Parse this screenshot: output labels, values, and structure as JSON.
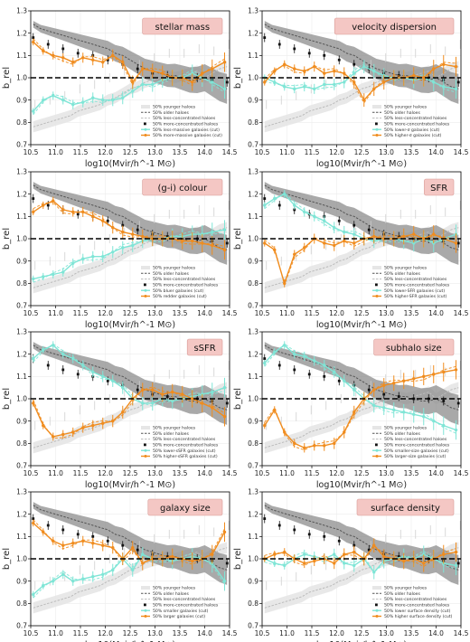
{
  "figure": {
    "shared": {
      "xlabel": "log10(Mvir/h^-1 M⊙)",
      "ylabel": "b_rel",
      "xlim": [
        10.5,
        14.5
      ],
      "ylim": [
        0.7,
        1.3
      ],
      "xticks": [
        "10.5",
        "11.0",
        "11.5",
        "12.0",
        "12.5",
        "13.0",
        "13.5",
        "14.0",
        "14.5"
      ],
      "yticks": [
        "0.7",
        "0.8",
        "0.9",
        "1.0",
        "1.1",
        "1.2",
        "1.3"
      ]
    },
    "colors": {
      "halo_dark": "#555555",
      "halo_light": "#bbbbbb",
      "concentrated": "#111111",
      "low_gal": "#7fe5d6",
      "high_gal": "#f08c1e",
      "band_dark": "#8c8c8c",
      "band_light": "#e6e6e6"
    }
  },
  "chart_data": [
    {
      "type": "line",
      "title": "stellar mass",
      "legend": [
        "50% younger haloes",
        "50% older haloes",
        "50% less-concentrated haloes",
        "50% more-concentrated haloes",
        "50% less-massive galaxies (cut)",
        "50% more-massive galaxies (cut)"
      ],
      "series": [
        {
          "name": "50% more-massive galaxies (cut)",
          "x": [
            10.55,
            10.75,
            10.95,
            11.15,
            11.35,
            11.55,
            11.75,
            11.95,
            12.15,
            12.35,
            12.55,
            12.75,
            12.95,
            13.15,
            13.35,
            13.55,
            13.75,
            13.95,
            14.15,
            14.4
          ],
          "values": [
            1.16,
            1.12,
            1.1,
            1.09,
            1.07,
            1.09,
            1.08,
            1.07,
            1.1,
            1.07,
            0.98,
            1.04,
            1.03,
            1.02,
            1.0,
            1.0,
            0.98,
            1.02,
            1.04,
            1.07
          ]
        },
        {
          "name": "50% less-massive galaxies (cut)",
          "x": [
            10.55,
            10.75,
            10.95,
            11.15,
            11.35,
            11.55,
            11.75,
            11.95,
            12.15,
            12.35,
            12.55,
            12.75,
            12.95,
            13.15,
            13.35,
            13.55,
            13.75,
            13.95,
            14.15,
            14.4
          ],
          "values": [
            0.85,
            0.9,
            0.92,
            0.9,
            0.88,
            0.89,
            0.91,
            0.9,
            0.9,
            0.91,
            0.94,
            0.97,
            0.97,
            0.99,
            1.0,
            1.0,
            1.02,
            1.0,
            0.98,
            0.95
          ]
        }
      ]
    },
    {
      "type": "line",
      "title": "velocity dispersion",
      "legend": [
        "50% younger haloes",
        "50% older haloes",
        "50% less-concentrated haloes",
        "50% more-concentrated haloes",
        "50% lower-σ galaxies (cut)",
        "50% higher-σ galaxies (cut)"
      ],
      "series": [
        {
          "name": "50% higher-σ galaxies (cut)",
          "x": [
            10.55,
            10.75,
            10.95,
            11.15,
            11.35,
            11.55,
            11.75,
            11.95,
            12.15,
            12.35,
            12.55,
            12.75,
            12.95,
            13.15,
            13.35,
            13.55,
            13.75,
            13.95,
            14.15,
            14.4
          ],
          "values": [
            0.98,
            1.03,
            1.06,
            1.04,
            1.03,
            1.05,
            1.02,
            1.03,
            1.02,
            0.98,
            0.9,
            0.95,
            0.98,
            1.0,
            1.0,
            1.01,
            1.0,
            1.04,
            1.06,
            1.05
          ]
        },
        {
          "name": "50% lower-σ galaxies (cut)",
          "x": [
            10.55,
            10.75,
            10.95,
            11.15,
            11.35,
            11.55,
            11.75,
            11.95,
            12.15,
            12.35,
            12.55,
            12.75,
            12.95,
            13.15,
            13.35,
            13.55,
            13.75,
            13.95,
            14.15,
            14.4
          ],
          "values": [
            1.0,
            0.98,
            0.96,
            0.95,
            0.96,
            0.95,
            0.97,
            0.97,
            0.98,
            1.02,
            1.05,
            1.03,
            1.01,
            1.0,
            1.0,
            0.99,
            1.0,
            0.98,
            0.96,
            0.95
          ]
        }
      ]
    },
    {
      "type": "line",
      "title": "(g-i) colour",
      "legend": [
        "50% younger haloes",
        "50% older haloes",
        "50% less-concentrated haloes",
        "50% more-concentrated haloes",
        "50% bluer galaxies (cut)",
        "50% redder galaxies (cut)"
      ],
      "series": [
        {
          "name": "50% redder galaxies (cut)",
          "x": [
            10.55,
            10.75,
            10.95,
            11.15,
            11.35,
            11.55,
            11.75,
            11.95,
            12.15,
            12.35,
            12.55,
            12.75,
            12.95,
            13.15,
            13.35,
            13.55,
            13.75,
            13.95,
            14.15,
            14.4
          ],
          "values": [
            1.12,
            1.15,
            1.17,
            1.13,
            1.12,
            1.12,
            1.1,
            1.08,
            1.05,
            1.03,
            1.02,
            1.01,
            1.0,
            1.0,
            1.0,
            0.99,
            0.99,
            0.98,
            0.97,
            0.95
          ]
        },
        {
          "name": "50% bluer galaxies (cut)",
          "x": [
            10.55,
            10.75,
            10.95,
            11.15,
            11.35,
            11.55,
            11.75,
            11.95,
            12.15,
            12.35,
            12.55,
            12.75,
            12.95,
            13.15,
            13.35,
            13.55,
            13.75,
            13.95,
            14.15,
            14.4
          ],
          "values": [
            0.82,
            0.83,
            0.84,
            0.85,
            0.89,
            0.91,
            0.92,
            0.92,
            0.94,
            0.96,
            0.97,
            0.99,
            1.0,
            1.0,
            1.01,
            1.01,
            1.02,
            1.02,
            1.03,
            1.04
          ]
        }
      ]
    },
    {
      "type": "line",
      "title": "SFR",
      "legend": [
        "50% younger haloes",
        "50% older haloes",
        "50% less-concentrated haloes",
        "50% more-concentrated haloes",
        "50% lower-SFR galaxies (cut)",
        "50% higher-SFR galaxies (cut)"
      ],
      "series": [
        {
          "name": "50% higher-SFR galaxies (cut)",
          "x": [
            10.55,
            10.75,
            10.95,
            11.15,
            11.35,
            11.55,
            11.75,
            11.95,
            12.15,
            12.35,
            12.55,
            12.75,
            12.95,
            13.15,
            13.35,
            13.55,
            13.75,
            13.95,
            14.15,
            14.4
          ],
          "values": [
            0.98,
            0.95,
            0.8,
            0.93,
            0.96,
            1.0,
            0.98,
            0.97,
            0.99,
            0.98,
            1.0,
            1.01,
            1.0,
            1.0,
            1.01,
            1.02,
            1.0,
            1.02,
            1.0,
            0.98
          ]
        },
        {
          "name": "50% lower-SFR galaxies (cut)",
          "x": [
            10.55,
            10.75,
            10.95,
            11.15,
            11.35,
            11.55,
            11.75,
            11.95,
            12.15,
            12.35,
            12.55,
            12.75,
            12.95,
            13.15,
            13.35,
            13.55,
            13.75,
            13.95,
            14.15,
            14.4
          ],
          "values": [
            1.15,
            1.18,
            1.2,
            1.15,
            1.12,
            1.1,
            1.08,
            1.05,
            1.03,
            1.02,
            1.0,
            0.99,
            1.0,
            1.0,
            0.99,
            0.98,
            1.0,
            0.98,
            1.0,
            1.02
          ]
        }
      ]
    },
    {
      "type": "line",
      "title": "sSFR",
      "legend": [
        "50% younger haloes",
        "50% older haloes",
        "50% less-concentrated haloes",
        "50% more-concentrated haloes",
        "50% lower-sSFR galaxies (cut)",
        "50% higher-sSFR galaxies (cut)"
      ],
      "series": [
        {
          "name": "50% higher-sSFR galaxies (cut)",
          "x": [
            10.55,
            10.75,
            10.95,
            11.15,
            11.35,
            11.55,
            11.75,
            11.95,
            12.15,
            12.35,
            12.55,
            12.75,
            12.95,
            13.15,
            13.35,
            13.55,
            13.75,
            13.95,
            14.15,
            14.4
          ],
          "values": [
            0.98,
            0.88,
            0.83,
            0.84,
            0.85,
            0.87,
            0.88,
            0.89,
            0.9,
            0.94,
            1.0,
            1.04,
            1.04,
            1.02,
            1.03,
            1.02,
            1.0,
            0.98,
            0.96,
            0.92
          ]
        },
        {
          "name": "50% lower-sSFR galaxies (cut)",
          "x": [
            10.55,
            10.75,
            10.95,
            11.15,
            11.35,
            11.55,
            11.75,
            11.95,
            12.15,
            12.35,
            12.55,
            12.75,
            12.95,
            13.15,
            13.35,
            13.55,
            13.75,
            13.95,
            14.15,
            14.4
          ],
          "values": [
            1.18,
            1.22,
            1.24,
            1.2,
            1.18,
            1.15,
            1.12,
            1.1,
            1.08,
            1.05,
            1.0,
            0.98,
            0.98,
            1.0,
            0.99,
            1.0,
            1.01,
            1.02,
            1.03,
            1.05
          ]
        }
      ]
    },
    {
      "type": "line",
      "title": "subhalo size",
      "legend": [
        "50% younger haloes",
        "50% older haloes",
        "50% less-concentrated haloes",
        "50% more-concentrated haloes",
        "50% smaller-size galaxies (cut)",
        "50% larger-size galaxies (cut)"
      ],
      "series": [
        {
          "name": "50% larger-size galaxies (cut)",
          "x": [
            10.55,
            10.75,
            10.95,
            11.15,
            11.35,
            11.55,
            11.75,
            11.95,
            12.15,
            12.35,
            12.55,
            12.75,
            12.95,
            13.15,
            13.35,
            13.55,
            13.75,
            13.95,
            14.15,
            14.4
          ],
          "values": [
            0.88,
            0.95,
            0.85,
            0.8,
            0.78,
            0.79,
            0.79,
            0.8,
            0.85,
            0.94,
            1.0,
            1.04,
            1.06,
            1.07,
            1.08,
            1.09,
            1.1,
            1.11,
            1.12,
            1.13
          ]
        },
        {
          "name": "50% smaller-size galaxies (cut)",
          "x": [
            10.55,
            10.75,
            10.95,
            11.15,
            11.35,
            11.55,
            11.75,
            11.95,
            12.15,
            12.35,
            12.55,
            12.75,
            12.95,
            13.15,
            13.35,
            13.55,
            13.75,
            13.95,
            14.15,
            14.4
          ],
          "values": [
            1.16,
            1.21,
            1.24,
            1.2,
            1.19,
            1.17,
            1.15,
            1.12,
            1.08,
            1.04,
            1.0,
            0.97,
            0.96,
            0.95,
            0.94,
            0.93,
            0.92,
            0.9,
            0.88,
            0.86
          ]
        }
      ]
    },
    {
      "type": "line",
      "title": "galaxy size",
      "legend": [
        "50% younger haloes",
        "50% older haloes",
        "50% less-concentrated haloes",
        "50% more-concentrated haloes",
        "50% smaller galaxies (cut)",
        "50% larger galaxies (cut)"
      ],
      "series": [
        {
          "name": "50% larger galaxies (cut)",
          "x": [
            10.55,
            10.75,
            10.95,
            11.15,
            11.35,
            11.55,
            11.75,
            11.95,
            12.15,
            12.35,
            12.55,
            12.75,
            12.95,
            13.15,
            13.35,
            13.55,
            13.75,
            13.95,
            14.15,
            14.4
          ],
          "values": [
            1.16,
            1.12,
            1.08,
            1.06,
            1.07,
            1.08,
            1.07,
            1.06,
            1.05,
            1.0,
            1.05,
            0.98,
            1.0,
            1.0,
            1.01,
            1.0,
            0.99,
            1.0,
            1.02,
            1.12
          ]
        },
        {
          "name": "50% smaller galaxies (cut)",
          "x": [
            10.55,
            10.75,
            10.95,
            11.15,
            11.35,
            11.55,
            11.75,
            11.95,
            12.15,
            12.35,
            12.55,
            12.75,
            12.95,
            13.15,
            13.35,
            13.55,
            13.75,
            13.95,
            14.15,
            14.4
          ],
          "values": [
            0.84,
            0.88,
            0.9,
            0.93,
            0.9,
            0.91,
            0.92,
            0.93,
            0.95,
            1.0,
            0.95,
            1.02,
            1.0,
            1.0,
            0.99,
            1.0,
            1.01,
            1.0,
            0.98,
            0.9
          ]
        }
      ]
    },
    {
      "type": "line",
      "title": "surface density",
      "legend": [
        "50% younger haloes",
        "50% older haloes",
        "50% less-concentrated haloes",
        "50% more-concentrated haloes",
        "50% lower surface density (cut)",
        "50% higher surface density (cut)"
      ],
      "series": [
        {
          "name": "50% higher surface density (cut)",
          "x": [
            10.55,
            10.75,
            10.95,
            11.15,
            11.35,
            11.55,
            11.75,
            11.95,
            12.15,
            12.35,
            12.55,
            12.75,
            12.95,
            13.15,
            13.35,
            13.55,
            13.75,
            13.95,
            14.15,
            14.4
          ],
          "values": [
            1.0,
            1.02,
            1.03,
            1.0,
            0.98,
            0.99,
            1.0,
            0.98,
            1.02,
            1.03,
            1.0,
            1.06,
            1.01,
            1.0,
            0.99,
            1.0,
            0.98,
            1.0,
            1.02,
            1.03
          ]
        },
        {
          "name": "50% lower surface density (cut)",
          "x": [
            10.55,
            10.75,
            10.95,
            11.15,
            11.35,
            11.55,
            11.75,
            11.95,
            12.15,
            12.35,
            12.55,
            12.75,
            12.95,
            13.15,
            13.35,
            13.55,
            13.75,
            13.95,
            14.15,
            14.4
          ],
          "values": [
            1.0,
            0.98,
            0.97,
            1.0,
            1.02,
            1.01,
            1.0,
            1.02,
            0.98,
            0.97,
            1.0,
            0.94,
            0.99,
            1.0,
            1.01,
            1.0,
            1.02,
            1.0,
            0.98,
            0.97
          ]
        }
      ]
    }
  ],
  "halo_reference": {
    "x": [
      10.55,
      10.7,
      10.85,
      11.0,
      11.15,
      11.3,
      11.45,
      11.6,
      11.75,
      11.9,
      12.05,
      12.2,
      12.35,
      12.5,
      12.65,
      12.8,
      12.95,
      13.1,
      13.25,
      13.4,
      13.55,
      13.7,
      13.85,
      14.0,
      14.15,
      14.3,
      14.45
    ],
    "older": [
      1.24,
      1.22,
      1.21,
      1.2,
      1.19,
      1.18,
      1.17,
      1.16,
      1.15,
      1.14,
      1.13,
      1.11,
      1.1,
      1.08,
      1.06,
      1.04,
      1.03,
      1.02,
      1.01,
      1.01,
      1.0,
      0.99,
      0.99,
      1.0,
      0.98,
      0.96,
      0.95
    ],
    "younger": [
      0.78,
      0.79,
      0.8,
      0.81,
      0.82,
      0.83,
      0.85,
      0.86,
      0.87,
      0.88,
      0.9,
      0.91,
      0.93,
      0.95,
      0.96,
      0.98,
      0.99,
      1.0,
      1.01,
      1.0,
      1.01,
      1.02,
      1.03,
      1.0,
      1.02,
      1.04,
      1.05
    ],
    "concentrated": [
      1.18,
      1.16,
      1.15,
      1.14,
      1.13,
      1.12,
      1.11,
      1.1,
      1.1,
      1.09,
      1.08,
      1.07,
      1.06,
      1.05,
      1.04,
      1.03,
      1.02,
      1.01,
      1.01,
      1.0,
      1.0,
      1.0,
      1.0,
      1.0,
      0.99,
      0.99,
      0.98
    ]
  }
}
